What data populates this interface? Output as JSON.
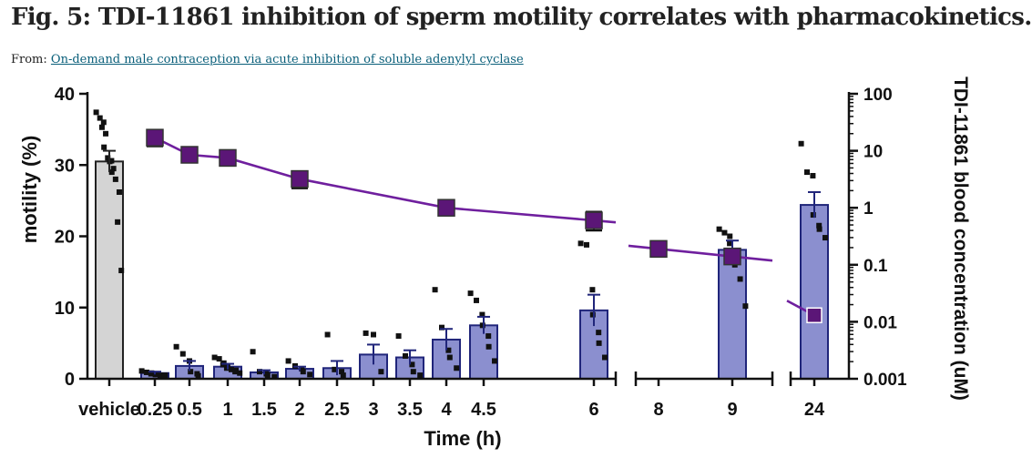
{
  "figure": {
    "title": "Fig. 5: TDI-11861 inhibition of sperm motility correlates with pharmacokinetics.",
    "from_prefix": "From:",
    "source_link": "On-demand male contraception via acute inhibition of soluble adenylyl cyclase"
  },
  "colors": {
    "vehicle_bar": "#d4d4d4",
    "treated_bar": "#8b8fcf",
    "bar_edge": "#20257a",
    "pk_line": "#6f1f9e",
    "pk_marker": "#5b1677",
    "points": "#111111",
    "axis": "#111111"
  },
  "chart_data": {
    "type": "bar",
    "xlabel": "Time (h)",
    "ylabel": "motility (%)",
    "y2label": "TDI-11861 blood concentration (uM)",
    "ylim": [
      0,
      40
    ],
    "yticks": [
      0,
      10,
      20,
      30,
      40
    ],
    "y2lim": [
      0.001,
      100
    ],
    "y2scale": "log",
    "y2ticks": [
      0.001,
      0.01,
      0.1,
      1,
      10,
      100
    ],
    "y2tick_labels": [
      "0.001",
      "0.01",
      "0.1",
      "1",
      "10",
      "100"
    ],
    "categories": [
      "vehicle",
      "0.25",
      "0.5",
      "1",
      "1.5",
      "2",
      "2.5",
      "3",
      "3.5",
      "4",
      "4.5",
      "6",
      "8",
      "9",
      "24"
    ],
    "motility": {
      "name": "motility (%)",
      "bars": [
        {
          "label": "vehicle",
          "mean": 30.5,
          "sem": 1.5,
          "points": [
            37.4,
            36.6,
            36.0,
            35.3,
            34.4,
            32.5,
            31.0,
            30.6,
            30.5,
            29.5,
            29.0,
            28.0,
            26.2,
            22.0,
            15.2
          ]
        },
        {
          "label": "0.25",
          "mean": 0.8,
          "sem": 0.2,
          "points": [
            1.1,
            0.9,
            0.8,
            0.7,
            0.7,
            0.6,
            0.5,
            0.5,
            0.4
          ]
        },
        {
          "label": "0.5",
          "mean": 1.8,
          "sem": 0.7,
          "points": [
            4.5,
            3.5,
            2.5,
            1.0,
            0.7,
            0.4
          ]
        },
        {
          "label": "1",
          "mean": 1.7,
          "sem": 0.4,
          "points": [
            3.0,
            2.8,
            2.2,
            2.0,
            1.8,
            1.5,
            1.3,
            1.2,
            1.0,
            0.8
          ]
        },
        {
          "label": "1.5",
          "mean": 0.9,
          "sem": 0.3,
          "points": [
            3.8,
            1.0,
            0.7,
            0.5,
            0.3
          ]
        },
        {
          "label": "2",
          "mean": 1.4,
          "sem": 0.3,
          "points": [
            2.5,
            1.8,
            1.4,
            1.0,
            0.6
          ]
        },
        {
          "label": "2.5",
          "mean": 1.5,
          "sem": 1.0,
          "points": [
            6.2,
            1.3,
            1.0,
            0.5
          ]
        },
        {
          "label": "3",
          "mean": 3.4,
          "sem": 1.4,
          "points": [
            6.4,
            6.2,
            1.0
          ]
        },
        {
          "label": "3.5",
          "mean": 3.0,
          "sem": 1.0,
          "points": [
            6.0,
            3.2,
            2.0,
            1.0,
            0.5
          ]
        },
        {
          "label": "4",
          "mean": 5.5,
          "sem": 1.5,
          "points": [
            12.5,
            7.2,
            4.0,
            3.0,
            1.5
          ]
        },
        {
          "label": "4.5",
          "mean": 7.5,
          "sem": 1.2,
          "points": [
            12.0,
            11.0,
            9.0,
            7.5,
            6.0,
            4.5,
            2.5
          ]
        },
        {
          "label": "6",
          "mean": 9.6,
          "sem": 2.2,
          "points": [
            19.0,
            18.8,
            12.5,
            9.0,
            6.5,
            5.0,
            3.0
          ]
        },
        {
          "label": "8",
          "mean": null,
          "sem": null,
          "points": []
        },
        {
          "label": "9",
          "mean": 18.1,
          "sem": 1.3,
          "points": [
            21.0,
            20.5,
            20.0,
            19.0,
            18.0,
            16.0,
            14.0,
            10.2
          ]
        },
        {
          "label": "24",
          "mean": 24.4,
          "sem": 1.8,
          "points": [
            33.0,
            29.0,
            28.5,
            23.0,
            21.5,
            21.0,
            19.8
          ]
        }
      ]
    },
    "concentration": {
      "name": "TDI-11861 blood concentration (uM)",
      "points": [
        {
          "t": "0.25",
          "value": 17,
          "err_low": 12,
          "err_high": 22
        },
        {
          "t": "0.5",
          "value": 8.5
        },
        {
          "t": "1",
          "value": 7.5
        },
        {
          "t": "2",
          "value": 3.2,
          "err_low": 2.2,
          "err_high": 4.3
        },
        {
          "t": "4",
          "value": 1.0,
          "err_low": 0.85,
          "err_high": 1.15
        },
        {
          "t": "6",
          "value": 0.6,
          "err_low": 0.4,
          "err_high": 0.85
        },
        {
          "t": "8",
          "value": 0.19,
          "err_low": 0.15,
          "err_high": 0.25
        },
        {
          "t": "9",
          "value": 0.14
        },
        {
          "t": "24",
          "value": 0.013
        }
      ],
      "segments": [
        [
          "0.25",
          "0.5",
          "1",
          "2",
          "4",
          "6"
        ],
        [
          "8",
          "9"
        ],
        [
          "24"
        ]
      ]
    },
    "axis_breaks": [
      "6-8",
      "9-24"
    ]
  }
}
